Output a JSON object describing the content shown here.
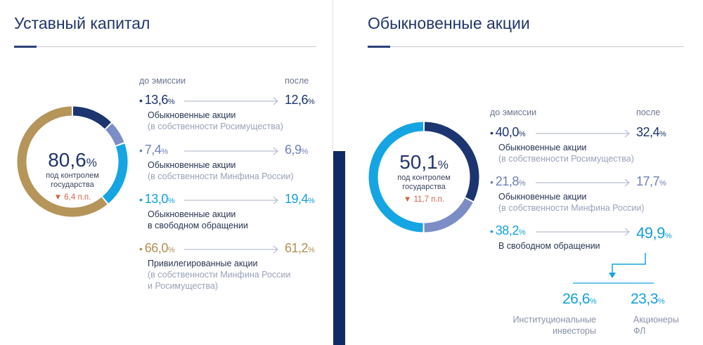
{
  "colors": {
    "navy": "#1c3570",
    "slate": "#7b8dc4",
    "cyan": "#15a5e2",
    "gold": "#b5955a",
    "delta": "#d0634a"
  },
  "left": {
    "title": "Уставный капитал",
    "header_before": "до эмиссии",
    "header_after": "после",
    "center": {
      "value": "80,6",
      "pct": "%",
      "line1": "под контролем",
      "line2": "государства",
      "delta": "▼ 6,4 п.п."
    },
    "rows": [
      {
        "before": "13,6",
        "after": "12,6",
        "pct": "%",
        "label": "Обыкновенные акции",
        "sub": "(в собственности Росимущества)",
        "sub2": ""
      },
      {
        "before": "7,4",
        "after": "6,9",
        "pct": "%",
        "label": "Обыкновенные акции",
        "sub": "(в собственности Минфина России)",
        "sub2": ""
      },
      {
        "before": "13,0",
        "after": "19,4",
        "pct": "%",
        "label": "Обыкновенные акции",
        "sub": "в свободном обращении",
        "sub2": ""
      },
      {
        "before": "66,0",
        "after": "61,2",
        "pct": "%",
        "label": "Привилегированные акции",
        "sub": "(в собственности Минфина России",
        "sub2": "и Росимущества)"
      }
    ]
  },
  "right": {
    "title": "Обыкновенные акции",
    "header_before": "до эмиссии",
    "header_after": "после",
    "center": {
      "value": "50,1",
      "pct": "%",
      "line1": "под контролем",
      "line2": "государства",
      "delta": "▼ 11,7 п.п."
    },
    "rows": [
      {
        "before": "40,0",
        "after": "32,4",
        "pct": "%",
        "label": "Обыкновенные акции",
        "sub": "(в собственности Росимущества)"
      },
      {
        "before": "21,8",
        "after": "17,7",
        "pct": "%",
        "label": "Обыкновенные акции",
        "sub": "(в собственности Минфина России)"
      },
      {
        "before": "38,2",
        "after": "49,9",
        "pct": "%",
        "label": "В свободном обращении",
        "sub": ""
      }
    ],
    "split": [
      {
        "value": "26,6",
        "pct": "%",
        "line1": "Институциональные",
        "line2": "инвесторы"
      },
      {
        "value": "23,3",
        "pct": "%",
        "line1": "Акционеры",
        "line2": "ФЛ"
      }
    ]
  },
  "chart_data": [
    {
      "type": "pie",
      "title": "Уставный капитал (после эмиссии)",
      "categories": [
        "Обыкновенные акции (Росимущество)",
        "Обыкновенные акции (Минфин России)",
        "Обыкновенные акции в свободном обращении",
        "Привилегированные акции"
      ],
      "values": [
        12.6,
        6.9,
        19.4,
        61.2
      ],
      "values_before": [
        13.6,
        7.4,
        13.0,
        66.0
      ],
      "colors": [
        "#1c3570",
        "#7b8dc4",
        "#15a5e2",
        "#b5955a"
      ]
    },
    {
      "type": "pie",
      "title": "Обыкновенные акции (после эмиссии)",
      "categories": [
        "Росимущество",
        "Минфин России",
        "В свободном обращении"
      ],
      "values": [
        32.4,
        17.7,
        49.9
      ],
      "values_before": [
        40.0,
        21.8,
        38.2
      ],
      "colors": [
        "#1c3570",
        "#7b8dc4",
        "#15a5e2"
      ]
    }
  ]
}
